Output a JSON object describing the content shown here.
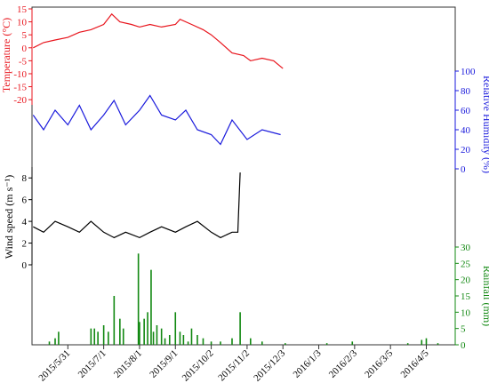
{
  "chart_data": {
    "type": "line",
    "x_ticks": [
      "2015/5/31",
      "2015/7/1",
      "2015/8/1",
      "2015/9/1",
      "2015/10/2",
      "2015/11/2",
      "2015/12/3",
      "2016/1/3",
      "2016/2/3",
      "2016/3/5",
      "2016/4/5"
    ],
    "panels": [
      {
        "id": "temperature",
        "type": "line",
        "ylabel": "Temperature (°C)",
        "color": "#e8141c",
        "axis_side": "left",
        "ylim": [
          -22,
          15
        ],
        "yticks": [
          -20,
          -15,
          -10,
          -5,
          0,
          5,
          10,
          15
        ],
        "segments": [
          {
            "x": [
              "2015-05-01",
              "2015-05-10",
              "2015-05-20",
              "2015-05-31",
              "2015-06-10",
              "2015-06-20",
              "2015-07-01",
              "2015-07-08",
              "2015-07-15",
              "2015-07-25",
              "2015-08-01",
              "2015-08-10",
              "2015-08-20",
              "2015-09-01",
              "2015-09-05",
              "2015-09-15",
              "2015-09-25",
              "2015-10-02",
              "2015-10-10",
              "2015-10-20",
              "2015-10-30",
              "2015-11-05",
              "2015-11-15",
              "2015-11-25",
              "2015-12-03"
            ],
            "y": [
              0,
              2,
              3,
              4,
              6,
              7,
              9,
              13,
              10,
              9,
              8,
              9,
              8,
              9,
              11,
              9,
              7,
              5,
              2,
              -2,
              -3,
              -5,
              -4,
              -5,
              -8
            ]
          }
        ]
      },
      {
        "id": "humidity",
        "type": "line",
        "ylabel": "Relative Humidity (%)",
        "color": "#1a1adc",
        "axis_side": "right",
        "ylim": [
          0,
          100
        ],
        "yticks": [
          0,
          20,
          40,
          60,
          80,
          100
        ],
        "segments": [
          {
            "x": [
              "2015-05-01",
              "2015-05-10",
              "2015-05-20",
              "2015-05-31",
              "2015-06-10",
              "2015-06-20",
              "2015-07-01",
              "2015-07-10",
              "2015-07-20",
              "2015-08-01",
              "2015-08-10",
              "2015-08-20",
              "2015-09-01",
              "2015-09-10",
              "2015-09-20",
              "2015-10-02",
              "2015-10-10",
              "2015-10-20",
              "2015-11-02",
              "2015-11-15",
              "2015-12-01"
            ],
            "y": [
              55,
              40,
              60,
              45,
              65,
              40,
              55,
              70,
              45,
              60,
              75,
              55,
              50,
              60,
              40,
              35,
              25,
              50,
              30,
              40,
              35
            ]
          }
        ]
      },
      {
        "id": "wind",
        "type": "line",
        "ylabel": "Wind speed (m s⁻¹)",
        "color": "#000000",
        "axis_side": "left",
        "ylim": [
          0,
          9
        ],
        "yticks": [
          0,
          2,
          4,
          6,
          8
        ],
        "segments": [
          {
            "x": [
              "2015-05-01",
              "2015-05-10",
              "2015-05-20",
              "2015-05-31",
              "2015-06-10",
              "2015-06-20",
              "2015-07-01",
              "2015-07-10",
              "2015-07-20",
              "2015-08-01",
              "2015-08-10",
              "2015-08-20",
              "2015-09-01",
              "2015-09-10",
              "2015-09-20",
              "2015-10-02",
              "2015-10-10",
              "2015-10-20",
              "2015-10-25",
              "2015-10-27"
            ],
            "y": [
              3.5,
              3,
              4,
              3.5,
              3,
              4,
              3,
              2.5,
              3,
              2.5,
              3,
              3.5,
              3,
              3.5,
              4,
              3,
              2.5,
              3,
              3,
              8.5
            ]
          }
        ]
      },
      {
        "id": "rainfall",
        "type": "bar",
        "ylabel": "Rainfall (mm)",
        "color": "#118811",
        "axis_side": "right",
        "ylim": [
          0,
          30
        ],
        "yticks": [
          0,
          5,
          10,
          15,
          20,
          25,
          30
        ],
        "bars": {
          "x": [
            "2015-05-15",
            "2015-05-20",
            "2015-05-23",
            "2015-06-20",
            "2015-06-23",
            "2015-06-26",
            "2015-07-01",
            "2015-07-05",
            "2015-07-10",
            "2015-07-15",
            "2015-07-18",
            "2015-07-31",
            "2015-08-01",
            "2015-08-05",
            "2015-08-08",
            "2015-08-11",
            "2015-08-13",
            "2015-08-16",
            "2015-08-20",
            "2015-08-23",
            "2015-08-27",
            "2015-09-01",
            "2015-09-05",
            "2015-09-08",
            "2015-09-12",
            "2015-09-15",
            "2015-09-20",
            "2015-09-25",
            "2015-10-02",
            "2015-10-10",
            "2015-10-20",
            "2015-10-27",
            "2015-11-05",
            "2015-11-15",
            "2015-12-05",
            "2016-01-10",
            "2016-02-01",
            "2016-03-20",
            "2016-04-01",
            "2016-04-05",
            "2016-04-15"
          ],
          "y": [
            1,
            2,
            4,
            5,
            5,
            4,
            6,
            4,
            15,
            8,
            5,
            28,
            7,
            8,
            10,
            23,
            4,
            6,
            5,
            2,
            3,
            10,
            4,
            3,
            1,
            5,
            3,
            2,
            1,
            1,
            2,
            10,
            2,
            1,
            0.5,
            0.5,
            1,
            0.5,
            1.5,
            2,
            0.5
          ]
        }
      }
    ]
  }
}
